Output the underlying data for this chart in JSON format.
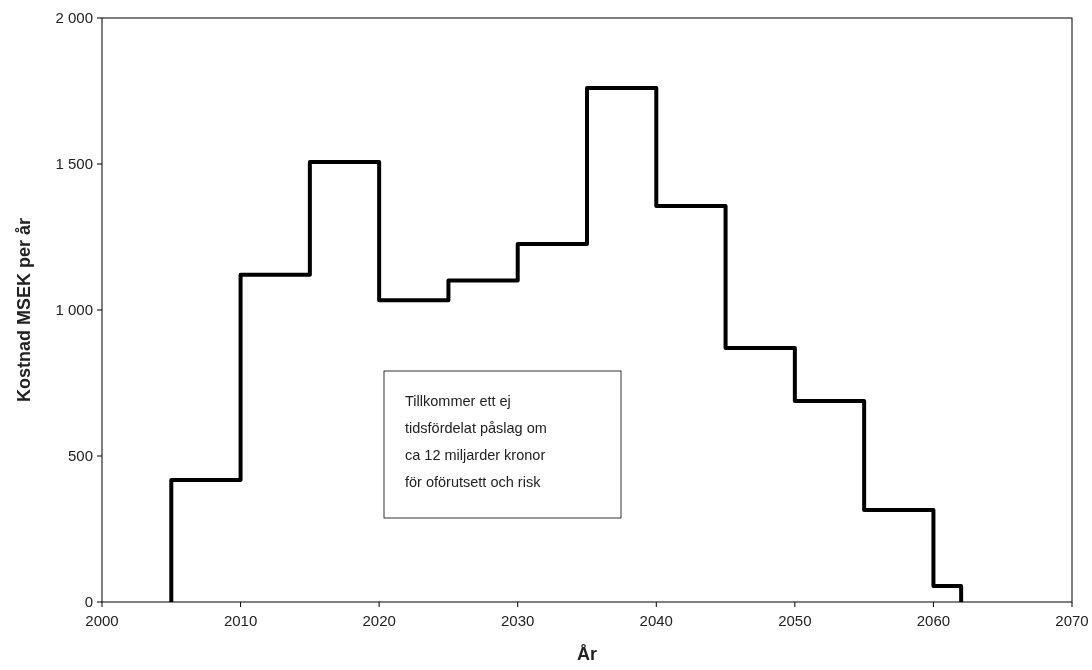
{
  "chart_data": {
    "type": "step",
    "xlabel": "År",
    "ylabel": "Kostnad MSEK per år",
    "x": [
      2005,
      2005,
      2010,
      2015,
      2020,
      2025,
      2030,
      2035,
      2040,
      2045,
      2050,
      2055,
      2060,
      2062,
      2062
    ],
    "series": [
      {
        "color": "#000000",
        "values": [
          0,
          418,
          1121,
          1507,
          1033,
          1101,
          1226,
          1760,
          1356,
          870,
          688,
          315,
          55,
          55,
          0
        ]
      }
    ],
    "xlim": [
      2000,
      2070
    ],
    "xticks": [
      2000,
      2010,
      2020,
      2030,
      2040,
      2050,
      2060,
      2070
    ],
    "ylim": [
      0,
      2000
    ],
    "yticks": [
      0,
      500,
      {
        "value": 1000,
        "label": "1 000"
      },
      {
        "value": 1500,
        "label": "1 500"
      },
      {
        "value": 2000,
        "label": "2 000"
      }
    ],
    "grid": false,
    "line_style": "solid",
    "annotations": [
      "Tillkommer ett ej\ntidsfördelat påslag om\nca 12 miljarder kronor\nför oförutsett och risk"
    ]
  }
}
